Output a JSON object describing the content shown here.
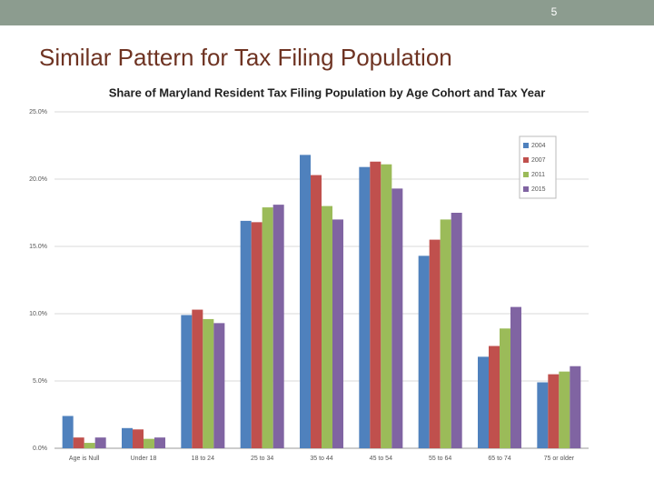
{
  "slide": {
    "page_number": "5",
    "heading": "Similar Pattern for Tax Filing Population"
  },
  "chart_data": {
    "type": "bar",
    "title": "Share of Maryland Resident Tax Filing Population by Age Cohort and Tax Year",
    "categories": [
      "Age is Null",
      "Under 18",
      "18 to 24",
      "25 to 34",
      "35 to 44",
      "45 to 54",
      "55 to 64",
      "65 to 74",
      "75 or older"
    ],
    "series": [
      {
        "name": "2004",
        "color": "#4f81bd",
        "values": [
          2.4,
          1.5,
          9.9,
          16.9,
          21.8,
          20.9,
          14.3,
          6.8,
          4.9
        ]
      },
      {
        "name": "2007",
        "color": "#c0504d",
        "values": [
          0.8,
          1.4,
          10.3,
          16.8,
          20.3,
          21.3,
          15.5,
          7.6,
          5.5
        ]
      },
      {
        "name": "2011",
        "color": "#9bbb59",
        "values": [
          0.4,
          0.7,
          9.6,
          17.9,
          18.0,
          21.1,
          17.0,
          8.9,
          5.7
        ]
      },
      {
        "name": "2015",
        "color": "#8064a2",
        "values": [
          0.8,
          0.8,
          9.3,
          18.1,
          17.0,
          19.3,
          17.5,
          10.5,
          6.1
        ]
      }
    ],
    "ylim": [
      0,
      25
    ],
    "yticks": [
      {
        "value": 0,
        "label": "0.0%"
      },
      {
        "value": 5,
        "label": "5.0%"
      },
      {
        "value": 10,
        "label": "10.0%"
      },
      {
        "value": 15,
        "label": "15.0%"
      },
      {
        "value": 20,
        "label": "20.0%"
      },
      {
        "value": 25,
        "label": "25.0%"
      }
    ],
    "grid": true,
    "legend": "upper-right"
  }
}
